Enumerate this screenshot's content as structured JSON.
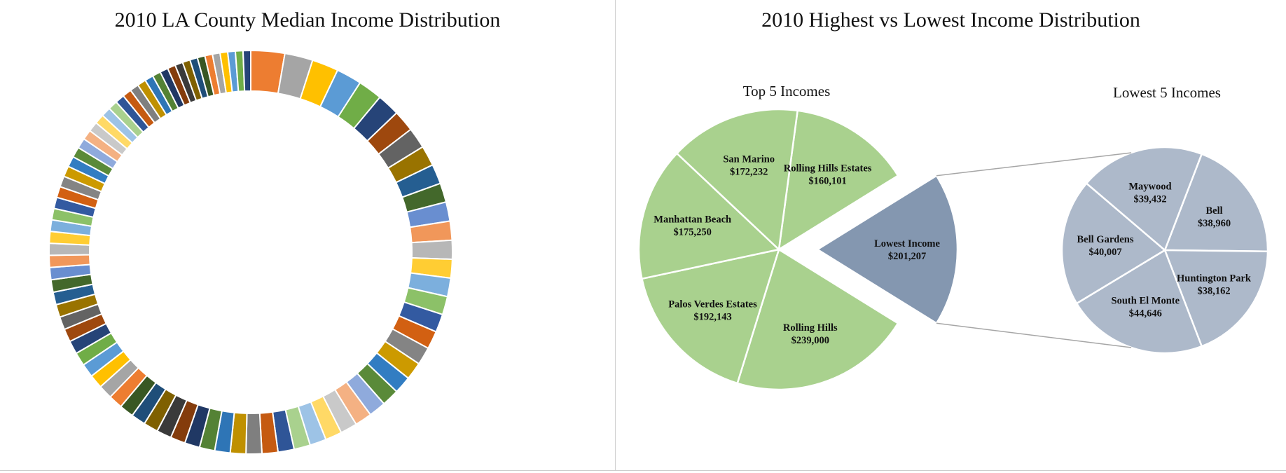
{
  "chart_data": [
    {
      "type": "pie",
      "variant": "doughnut",
      "title": "2010 LA County Median Income Distribution",
      "slice_count": 88,
      "first_slices": [
        {
          "color": "#ED7D31",
          "relative_size": 6.0
        },
        {
          "color": "#A5A5A5",
          "relative_size": 5.0
        },
        {
          "color": "#FFC000",
          "relative_size": 4.7
        },
        {
          "color": "#5B9BD5",
          "relative_size": 4.5
        },
        {
          "color": "#70AD47",
          "relative_size": 4.3
        },
        {
          "color": "#264478",
          "relative_size": 4.0
        },
        {
          "color": "#9E480E",
          "relative_size": 3.8
        },
        {
          "color": "#636363",
          "relative_size": 3.7
        },
        {
          "color": "#997300",
          "relative_size": 3.6
        },
        {
          "color": "#255E91",
          "relative_size": 3.5
        },
        {
          "color": "#43682B",
          "relative_size": 3.4
        }
      ],
      "palette": [
        "#ED7D31",
        "#A5A5A5",
        "#FFC000",
        "#5B9BD5",
        "#70AD47",
        "#264478",
        "#9E480E",
        "#636363",
        "#997300",
        "#255E91",
        "#43682B",
        "#698ED0",
        "#F1975A",
        "#B7B7B7",
        "#FFCD33",
        "#7CAFDD",
        "#8CC168",
        "#335AA1",
        "#D26012",
        "#848484",
        "#CC9A00",
        "#327DC2",
        "#5A8A39",
        "#8FAADC",
        "#F4B183",
        "#C9C9C9",
        "#FFD966",
        "#9DC3E6",
        "#A9D18E",
        "#2F5597",
        "#C55A11",
        "#7F7F7F",
        "#BF9000",
        "#2E75B6",
        "#548235",
        "#203864",
        "#843C0C",
        "#3A3A3A",
        "#7F6000",
        "#1F4E79",
        "#385723"
      ],
      "legend": "none"
    },
    {
      "type": "pie",
      "variant": "pie-of-pie",
      "title": "2010 Highest vs Lowest Income Distribution",
      "main_pie": {
        "title": "Top 5 Incomes",
        "color": "#A9D18E",
        "slices": [
          {
            "name": "Rolling Hills Estates",
            "value_label": "$160,101",
            "value": 160101
          },
          {
            "name": "Lowest Income",
            "value_label": "$201,207",
            "value": 201207,
            "exploded": true,
            "color": "#8497B0"
          },
          {
            "name": "Rolling Hills",
            "value_label": "$239,000",
            "value": 239000
          },
          {
            "name": "Palos Verdes Estates",
            "value_label": "$192,143",
            "value": 192143
          },
          {
            "name": "Manhattan Beach",
            "value_label": "$175,250",
            "value": 175250
          },
          {
            "name": "San Marino",
            "value_label": "$172,232",
            "value": 172232
          }
        ]
      },
      "secondary_pie": {
        "title": "Lowest 5 Incomes",
        "color": "#ADB9CA",
        "slices": [
          {
            "name": "Bell",
            "value_label": "$38,960",
            "value": 38960
          },
          {
            "name": "Huntington Park",
            "value_label": "$38,162",
            "value": 38162
          },
          {
            "name": "South El Monte",
            "value_label": "$44,646",
            "value": 44646
          },
          {
            "name": "Bell Gardens",
            "value_label": "$40,007",
            "value": 40007
          },
          {
            "name": "Maywood",
            "value_label": "$39,432",
            "value": 39432
          }
        ]
      },
      "legend": "none"
    }
  ]
}
